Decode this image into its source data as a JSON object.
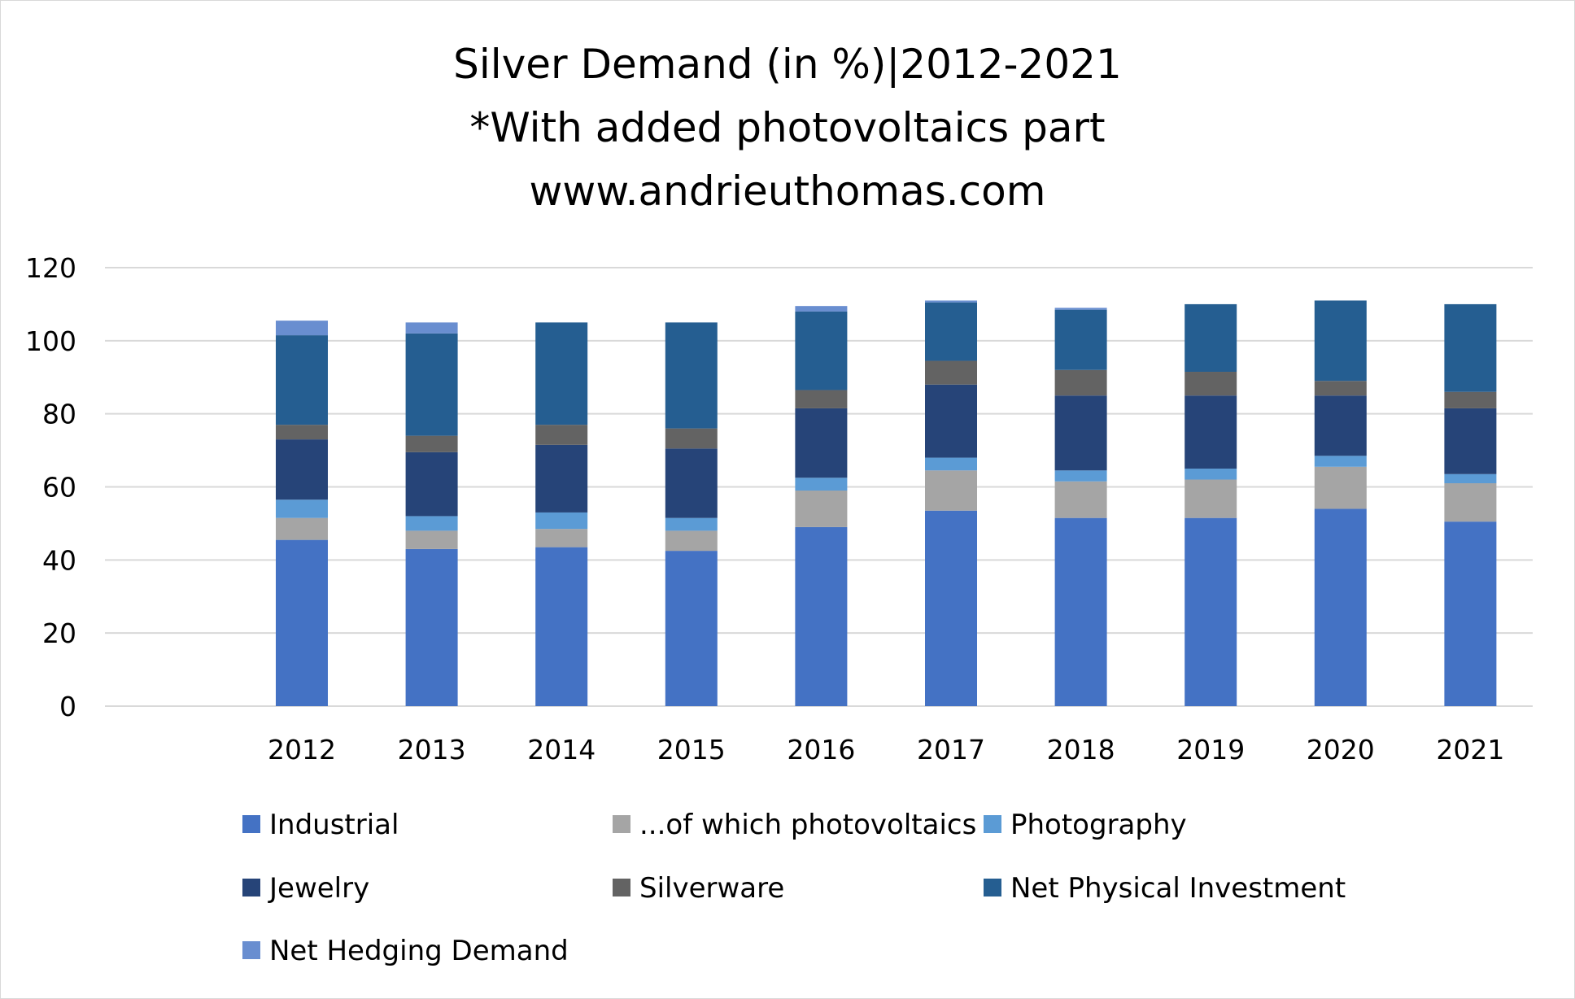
{
  "chart_data": {
    "type": "bar",
    "stacked": true,
    "title": [
      "Silver Demand (in %)|2012-2021",
      "*With added photovoltaics part",
      "www.andrieuthomas.com"
    ],
    "xlabel": "",
    "ylabel": "",
    "ylim": [
      0,
      120
    ],
    "yticks": [
      "0",
      "20",
      "40",
      "60",
      "80",
      "100",
      "120"
    ],
    "ytick_values": [
      0,
      20,
      40,
      60,
      80,
      100,
      120
    ],
    "grid": true,
    "legend_position": "bottom",
    "categories": [
      "2012",
      "2013",
      "2014",
      "2015",
      "2016",
      "2017",
      "2018",
      "2019",
      "2020",
      "2021"
    ],
    "series": [
      {
        "name": "Industrial",
        "color": "#4472C4",
        "values": [
          45.5,
          43,
          43.5,
          42.5,
          49,
          53.5,
          51.5,
          51.5,
          54,
          50.5
        ]
      },
      {
        "name": "...of which photovoltaics",
        "color": "#A5A5A5",
        "values": [
          6,
          5,
          5,
          5.5,
          10,
          11,
          10,
          10.5,
          11.5,
          10.5
        ]
      },
      {
        "name": "Photography",
        "color": "#5B9BD5",
        "values": [
          5,
          4,
          4.5,
          3.5,
          3.5,
          3.5,
          3,
          3,
          3,
          2.5
        ]
      },
      {
        "name": "Jewelry",
        "color": "#264478",
        "values": [
          16.5,
          17.5,
          18.5,
          19,
          19,
          20,
          20.5,
          20,
          16.5,
          18
        ]
      },
      {
        "name": "Silverware",
        "color": "#636363",
        "values": [
          4,
          4.5,
          5.5,
          5.5,
          5,
          6.5,
          7,
          6.5,
          4,
          4.5
        ]
      },
      {
        "name": "Net Physical Investment",
        "color": "#255E91",
        "values": [
          24.5,
          28,
          28,
          29,
          21.5,
          16,
          16.5,
          18.5,
          22,
          24
        ]
      },
      {
        "name": "Net Hedging Demand",
        "color": "#698ED0",
        "values": [
          4,
          3,
          0,
          0,
          1.5,
          0.5,
          0.5,
          0,
          0,
          0
        ]
      }
    ]
  }
}
